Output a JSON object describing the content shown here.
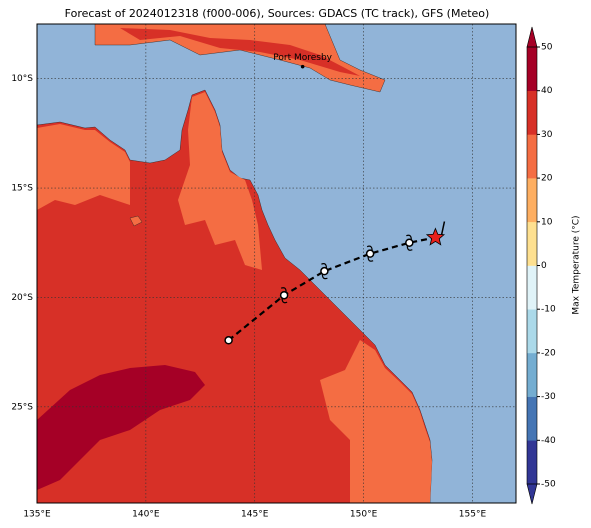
{
  "chart_data": {
    "type": "map",
    "title": "Forecast of 2024012318 (f000-006), Sources: GDACS (TC track), GFS (Meteo)",
    "xlim": [
      135,
      157
    ],
    "ylim": [
      -29.4,
      -7.5
    ],
    "xticks": [
      {
        "value": 135,
        "label": "135°E"
      },
      {
        "value": 140,
        "label": "140°E"
      },
      {
        "value": 145,
        "label": "145°E"
      },
      {
        "value": 150,
        "label": "150°E"
      },
      {
        "value": 155,
        "label": "155°E"
      }
    ],
    "yticks": [
      {
        "value": -10,
        "label": "10°S"
      },
      {
        "value": -15,
        "label": "15°S"
      },
      {
        "value": -20,
        "label": "20°S"
      },
      {
        "value": -25,
        "label": "25°S"
      }
    ],
    "grid": true,
    "ocean_color": "#91b4d8",
    "track": {
      "color": "#000000",
      "star_color": "#e8211c",
      "lon": [
        143.8,
        146.35,
        148.2,
        150.3,
        152.1,
        153.3
      ],
      "lat": [
        -21.96,
        -19.9,
        -18.8,
        -18.0,
        -17.5,
        -17.26
      ]
    },
    "places": [
      {
        "name": "Port Moresby",
        "lon": 147.2,
        "lat": -9.45
      }
    ],
    "colorbar": {
      "label": "Max Temperature (°C)",
      "lim": [
        -50,
        50
      ],
      "ticks": [
        -50,
        -40,
        -30,
        -20,
        -10,
        0,
        10,
        20,
        30,
        40,
        50
      ],
      "colors": [
        "#313695",
        "#4575b4",
        "#74add1",
        "#abd9e9",
        "#e0f3f8",
        "#fee090",
        "#fdae61",
        "#f46d43",
        "#d73027",
        "#a50026"
      ]
    }
  }
}
